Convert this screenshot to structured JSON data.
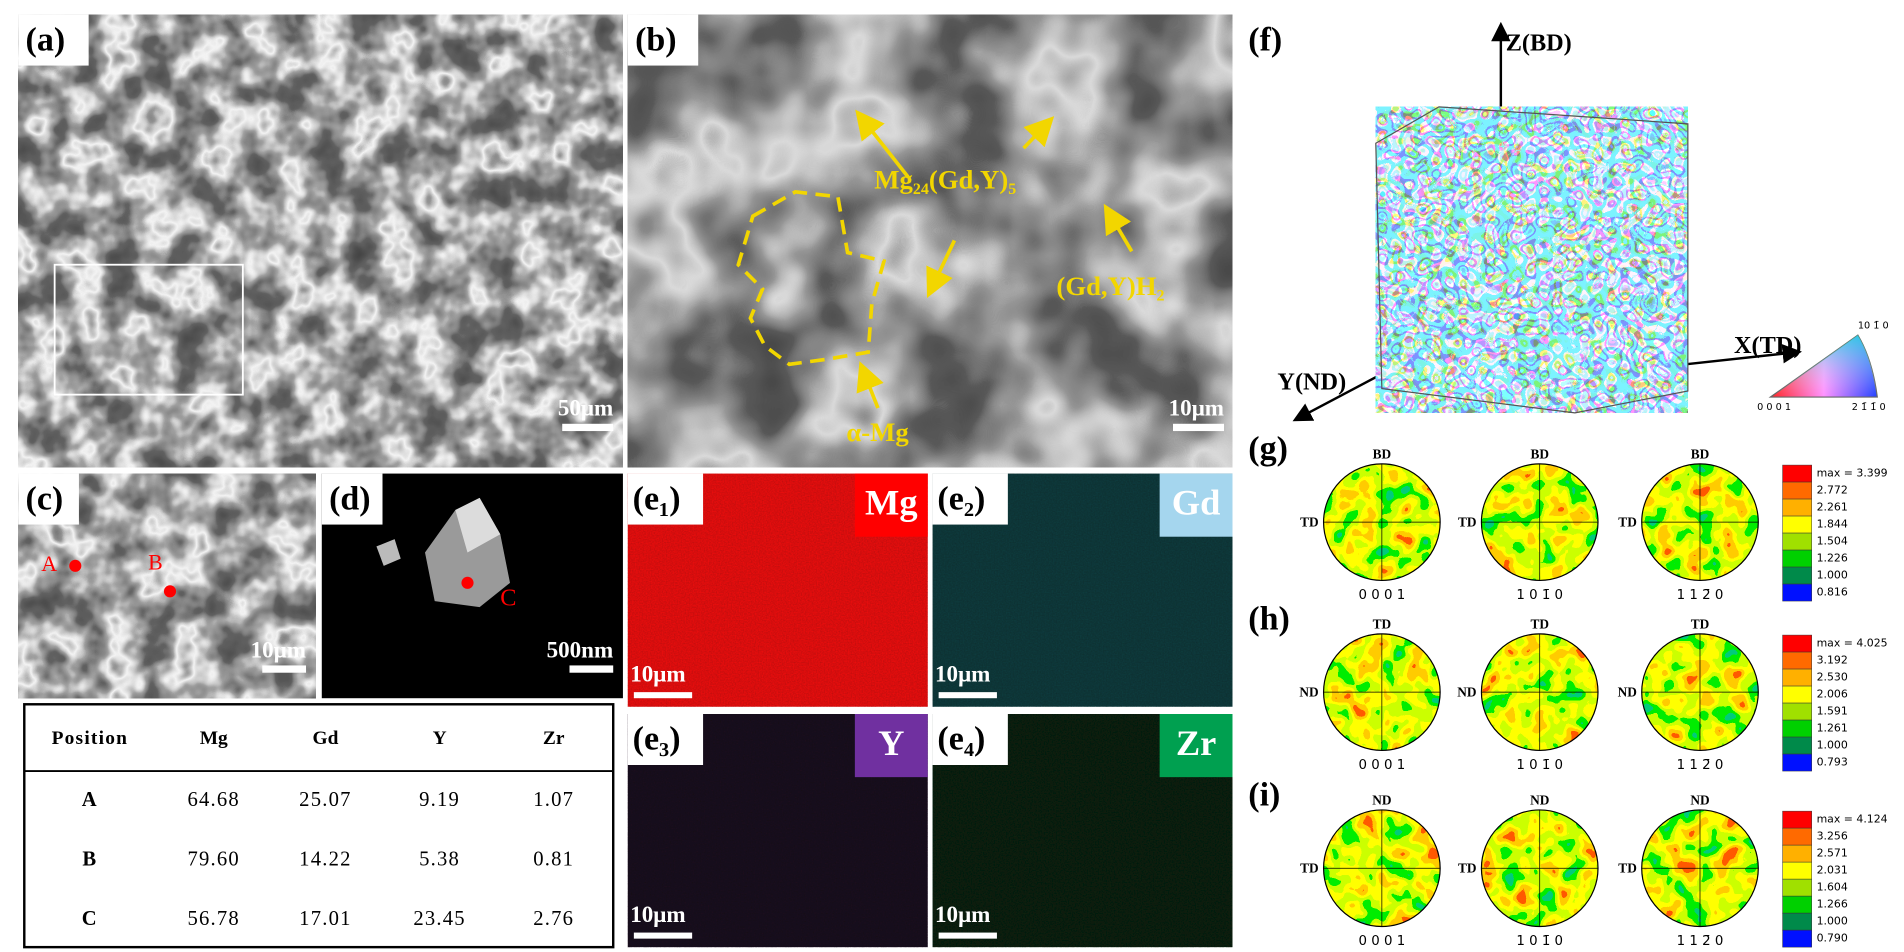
{
  "panels": {
    "a": {
      "label": "(a)",
      "scale_bar": "50μm"
    },
    "b": {
      "label": "(b)",
      "scale_bar": "10μm",
      "phase_1": "Mg₂₄(Gd,Y)₅",
      "phase_2": "(Gd,Y)H₂",
      "matrix": "α-Mg"
    },
    "c": {
      "label": "(c)",
      "point_a": "A",
      "point_b": "B",
      "scale_bar": "10μm"
    },
    "d": {
      "label": "(d)",
      "point_c": "C",
      "scale_bar": "500nm"
    },
    "e": [
      {
        "label": "(e₁)",
        "element": "Mg",
        "scale_bar": "10μm"
      },
      {
        "label": "(e₂)",
        "element": "Gd",
        "scale_bar": "10μm"
      },
      {
        "label": "(e₃)",
        "element": "Y",
        "scale_bar": "10μm"
      },
      {
        "label": "(e₄)",
        "element": "Zr",
        "scale_bar": "10μm"
      }
    ],
    "f": {
      "label": "(f)",
      "axis_z": "Z(BD)",
      "axis_x": "X(TD)",
      "axis_y": "Y(ND)",
      "ipf_top": "10 1̄ 0",
      "ipf_left": "0 0 0 1",
      "ipf_right": "2 1̄ 1̄ 0"
    },
    "pole_figures": [
      {
        "label": "(g)",
        "top": "BD",
        "left": "TD",
        "planes": [
          "0 0 0 1",
          "1 0 1̄ 0",
          "1 1 2̄ 0"
        ],
        "legend": [
          "max = 3.399",
          "2.772",
          "2.261",
          "1.844",
          "1.504",
          "1.226",
          "1.000",
          "0.816"
        ]
      },
      {
        "label": "(h)",
        "top": "TD",
        "left": "ND",
        "planes": [
          "0 0 0 1",
          "1 0 1̄ 0",
          "1 1 2̄ 0"
        ],
        "legend": [
          "max = 4.025",
          "3.192",
          "2.530",
          "2.006",
          "1.591",
          "1.261",
          "1.000",
          "0.793"
        ]
      },
      {
        "label": "(i)",
        "top": "ND",
        "left": "TD",
        "planes": [
          "0 0 0 1",
          "1 0 1̄ 0",
          "1 1 2̄ 0"
        ],
        "legend": [
          "max = 4.124",
          "3.256",
          "2.571",
          "2.031",
          "1.604",
          "1.266",
          "1.000",
          "0.790"
        ]
      }
    ]
  },
  "table": {
    "header": [
      "Position",
      "Mg",
      "Gd",
      "Y",
      "Zr"
    ],
    "rows": [
      [
        "A",
        "64.68",
        "25.07",
        "9.19",
        "1.07"
      ],
      [
        "B",
        "79.60",
        "14.22",
        "5.38",
        "0.81"
      ],
      [
        "C",
        "56.78",
        "17.01",
        "23.45",
        "2.76"
      ]
    ]
  }
}
